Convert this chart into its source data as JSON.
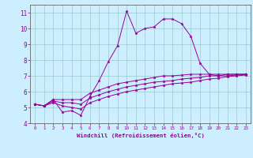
{
  "title": "",
  "xlabel": "Windchill (Refroidissement éolien,°C)",
  "background_color": "#cceeff",
  "line_color": "#990099",
  "grid_color": "#99cccc",
  "xlim": [
    -0.5,
    23.5
  ],
  "ylim": [
    4,
    11.5
  ],
  "xticks": [
    0,
    1,
    2,
    3,
    4,
    5,
    6,
    7,
    8,
    9,
    10,
    11,
    12,
    13,
    14,
    15,
    16,
    17,
    18,
    19,
    20,
    21,
    22,
    23
  ],
  "yticks": [
    4,
    5,
    6,
    7,
    8,
    9,
    10,
    11
  ],
  "curve1_x": [
    0,
    1,
    2,
    3,
    4,
    5,
    6,
    7,
    8,
    9,
    10,
    11,
    12,
    13,
    14,
    15,
    16,
    17,
    18,
    19,
    20,
    21,
    22,
    23
  ],
  "curve1_y": [
    5.2,
    5.1,
    5.5,
    4.7,
    4.8,
    4.5,
    5.7,
    6.7,
    7.9,
    8.9,
    11.1,
    9.7,
    10.0,
    10.1,
    10.6,
    10.6,
    10.3,
    9.5,
    7.8,
    7.1,
    7.0,
    7.1,
    7.1,
    7.1
  ],
  "curve2_x": [
    0,
    1,
    2,
    3,
    4,
    5,
    6,
    7,
    8,
    9,
    10,
    11,
    12,
    13,
    14,
    15,
    16,
    17,
    18,
    19,
    20,
    21,
    22,
    23
  ],
  "curve2_y": [
    5.2,
    5.1,
    5.5,
    5.5,
    5.5,
    5.5,
    5.9,
    6.1,
    6.3,
    6.5,
    6.6,
    6.7,
    6.8,
    6.9,
    7.0,
    7.0,
    7.05,
    7.1,
    7.1,
    7.1,
    7.1,
    7.1,
    7.1,
    7.1
  ],
  "curve3_x": [
    0,
    1,
    2,
    3,
    4,
    5,
    6,
    7,
    8,
    9,
    10,
    11,
    12,
    13,
    14,
    15,
    16,
    17,
    18,
    19,
    20,
    21,
    22,
    23
  ],
  "curve3_y": [
    5.2,
    5.1,
    5.4,
    5.3,
    5.3,
    5.2,
    5.6,
    5.8,
    6.0,
    6.15,
    6.3,
    6.4,
    6.5,
    6.6,
    6.65,
    6.7,
    6.8,
    6.85,
    6.9,
    7.0,
    7.0,
    7.0,
    7.05,
    7.1
  ],
  "curve4_x": [
    0,
    1,
    2,
    3,
    4,
    5,
    6,
    7,
    8,
    9,
    10,
    11,
    12,
    13,
    14,
    15,
    16,
    17,
    18,
    19,
    20,
    21,
    22,
    23
  ],
  "curve4_y": [
    5.2,
    5.1,
    5.3,
    5.1,
    5.0,
    4.9,
    5.3,
    5.5,
    5.7,
    5.85,
    6.0,
    6.1,
    6.2,
    6.3,
    6.4,
    6.5,
    6.55,
    6.6,
    6.7,
    6.8,
    6.85,
    6.95,
    7.0,
    7.05
  ]
}
